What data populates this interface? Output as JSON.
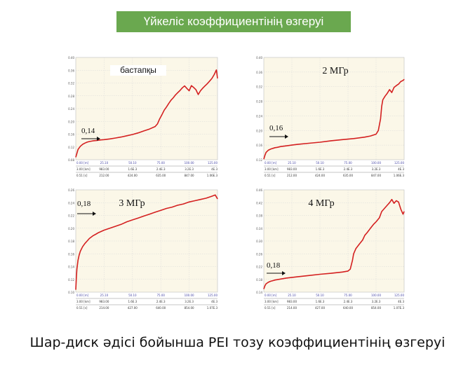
{
  "title": "Үйкеліс коэффициентінің өзгеруі",
  "caption": "Шар-диск әдісі бойынша PEI тозу коэффициентінің өзгеруі",
  "colors": {
    "title_bg": "#6aa84f",
    "plot_bg": "#fbf7e8",
    "grid": "#d9d9d9",
    "curve": "#d42020"
  },
  "chart_data": [
    {
      "type": "line",
      "label": "бастапқы",
      "annotation": "0,14",
      "yticks": [
        "0.40",
        "0.36",
        "0.32",
        "0.28",
        "0.24",
        "0.20",
        "0.16",
        "0.12",
        "0.08"
      ],
      "ylim": [
        0.08,
        0.4
      ],
      "xlim": [
        0,
        125
      ],
      "xticks": [
        "0.00 [m]",
        "25.10",
        "50.10",
        "75.00",
        "100.00",
        "125.00"
      ],
      "axis_rows": [
        [
          "3.00 [km]",
          "983.00",
          "1.6E.3",
          "2.4E.3",
          "3.2E.3",
          "4E.3"
        ],
        [
          "0.51 [s]",
          "212.00",
          "424.00",
          "635.00",
          "847.00",
          "1.06E.3"
        ]
      ],
      "x": [
        0,
        1,
        2,
        4,
        6,
        8,
        10,
        12,
        15,
        18,
        20,
        22,
        25,
        30,
        35,
        40,
        45,
        50,
        55,
        60,
        65,
        70,
        72,
        74,
        76,
        78,
        80,
        82,
        84,
        86,
        88,
        90,
        92,
        94,
        96,
        98,
        100,
        102,
        104,
        106,
        108,
        110,
        112,
        114,
        116,
        118,
        120,
        122,
        124,
        125
      ],
      "y": [
        0.088,
        0.1,
        0.112,
        0.122,
        0.128,
        0.132,
        0.135,
        0.137,
        0.139,
        0.14,
        0.141,
        0.142,
        0.143,
        0.145,
        0.148,
        0.151,
        0.155,
        0.159,
        0.164,
        0.17,
        0.176,
        0.184,
        0.192,
        0.208,
        0.221,
        0.235,
        0.245,
        0.256,
        0.266,
        0.274,
        0.283,
        0.29,
        0.297,
        0.305,
        0.311,
        0.303,
        0.296,
        0.312,
        0.306,
        0.299,
        0.284,
        0.296,
        0.304,
        0.311,
        0.318,
        0.326,
        0.334,
        0.346,
        0.361,
        0.335
      ]
    },
    {
      "type": "line",
      "label": "2 МГр",
      "annotation": "0,16",
      "yticks": [
        "0.40",
        "0.36",
        "0.32",
        "0.28",
        "0.24",
        "0.20",
        "0.16",
        "0.12"
      ],
      "ylim": [
        0.12,
        0.4
      ],
      "xlim": [
        0,
        125
      ],
      "xticks": [
        "0.00 [m]",
        "25.10",
        "50.10",
        "75.00",
        "100.00",
        "125.00"
      ],
      "axis_rows": [
        [
          "3.00 [km]",
          "983.00",
          "1.6E.3",
          "2.4E.3",
          "3.2E.3",
          "4E.3"
        ],
        [
          "0.51 [s]",
          "212.00",
          "424.00",
          "635.00",
          "847.00",
          "1.06E.3"
        ]
      ],
      "x": [
        0,
        1,
        2,
        4,
        6,
        8,
        10,
        12,
        15,
        20,
        25,
        30,
        40,
        50,
        60,
        70,
        80,
        90,
        95,
        100,
        102,
        104,
        105,
        106,
        108,
        110,
        112,
        114,
        116,
        118,
        120,
        122,
        124,
        125
      ],
      "y": [
        0.122,
        0.132,
        0.14,
        0.146,
        0.149,
        0.151,
        0.153,
        0.154,
        0.156,
        0.158,
        0.16,
        0.162,
        0.165,
        0.168,
        0.172,
        0.175,
        0.178,
        0.182,
        0.185,
        0.19,
        0.2,
        0.232,
        0.266,
        0.284,
        0.294,
        0.302,
        0.312,
        0.304,
        0.318,
        0.323,
        0.327,
        0.334,
        0.337,
        0.34
      ]
    },
    {
      "type": "line",
      "label": "3 МГр",
      "annotation": "0,18",
      "yticks": [
        "0.26",
        "0.24",
        "0.22",
        "0.20",
        "0.18",
        "0.16",
        "0.14",
        "0.12",
        "0.10"
      ],
      "ylim": [
        0.1,
        0.26
      ],
      "xlim": [
        0,
        125
      ],
      "xticks": [
        "0.00 [m]",
        "25.10",
        "50.10",
        "75.00",
        "100.00",
        "125.00"
      ],
      "axis_rows": [
        [
          "3.00 [km]",
          "983.00",
          "1.6E.3",
          "2.4E.3",
          "3.2E.3",
          "4E.3"
        ],
        [
          "0.51 [s]",
          "214.00",
          "427.00",
          "640.00",
          "854.00",
          "1.07E.3"
        ]
      ],
      "x": [
        0,
        0.5,
        1,
        2,
        3,
        4,
        6,
        8,
        10,
        12,
        15,
        18,
        20,
        25,
        30,
        35,
        40,
        45,
        50,
        55,
        60,
        65,
        70,
        75,
        80,
        85,
        90,
        95,
        100,
        105,
        110,
        115,
        120,
        123,
        125
      ],
      "y": [
        0.104,
        0.122,
        0.136,
        0.15,
        0.158,
        0.164,
        0.171,
        0.176,
        0.18,
        0.184,
        0.188,
        0.191,
        0.193,
        0.197,
        0.2,
        0.203,
        0.206,
        0.21,
        0.213,
        0.216,
        0.219,
        0.222,
        0.225,
        0.228,
        0.231,
        0.233,
        0.236,
        0.238,
        0.241,
        0.243,
        0.245,
        0.247,
        0.25,
        0.252,
        0.246
      ]
    },
    {
      "type": "line",
      "label": "4 МГр",
      "annotation": "0,18",
      "yticks": [
        "0.46",
        "0.42",
        "0.38",
        "0.34",
        "0.30",
        "0.26",
        "0.22",
        "0.18",
        "0.14"
      ],
      "ylim": [
        0.14,
        0.46
      ],
      "xlim": [
        0,
        125
      ],
      "xticks": [
        "0.00 [m]",
        "25.10",
        "50.10",
        "75.00",
        "100.00",
        "125.00"
      ],
      "axis_rows": [
        [
          "3.00 [km]",
          "983.00",
          "1.6E.3",
          "2.4E.3",
          "3.2E.3",
          "4E.3"
        ],
        [
          "0.51 [s]",
          "214.00",
          "427.00",
          "640.00",
          "854.00",
          "1.07E.3"
        ]
      ],
      "x": [
        0,
        1,
        2,
        4,
        6,
        8,
        10,
        15,
        20,
        30,
        40,
        50,
        60,
        65,
        70,
        75,
        77,
        79,
        80,
        82,
        85,
        88,
        90,
        92,
        95,
        98,
        100,
        103,
        105,
        108,
        110,
        112,
        114,
        116,
        118,
        120,
        122,
        124,
        125
      ],
      "y": [
        0.15,
        0.16,
        0.166,
        0.171,
        0.174,
        0.176,
        0.178,
        0.181,
        0.184,
        0.188,
        0.192,
        0.196,
        0.199,
        0.201,
        0.203,
        0.206,
        0.212,
        0.24,
        0.26,
        0.276,
        0.29,
        0.303,
        0.318,
        0.326,
        0.34,
        0.353,
        0.36,
        0.373,
        0.392,
        0.404,
        0.412,
        0.42,
        0.43,
        0.418,
        0.426,
        0.422,
        0.4,
        0.384,
        0.392
      ]
    }
  ]
}
